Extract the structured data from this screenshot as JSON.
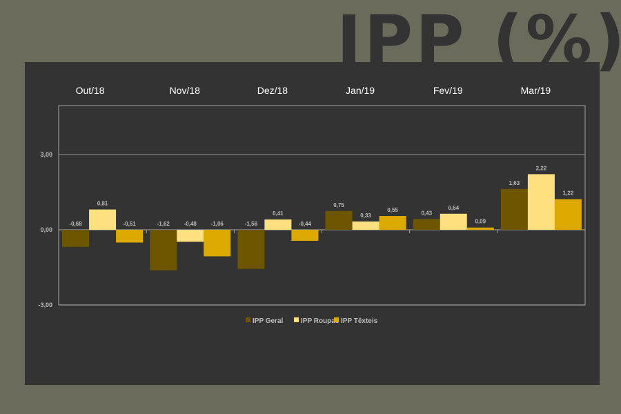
{
  "title": "IPP (%)",
  "colors": {
    "geral": "#6e5600",
    "roupas": "#ffe080",
    "texteis": "#dba900",
    "panel": "#333333",
    "background": "#6b6b5c"
  },
  "chart_data": {
    "type": "bar",
    "categories": [
      "Out/18",
      "Nov/18",
      "Dez/18",
      "Jan/19",
      "Fev/19",
      "Mar/19"
    ],
    "series": [
      {
        "name": "IPP Geral",
        "values": [
          -0.68,
          -1.62,
          -1.56,
          0.75,
          0.43,
          1.63
        ]
      },
      {
        "name": "IPP Roupas",
        "values": [
          0.81,
          -0.48,
          0.41,
          0.33,
          0.64,
          2.22
        ]
      },
      {
        "name": "IPP Têxteis",
        "values": [
          -0.51,
          -1.06,
          -0.44,
          0.55,
          0.09,
          1.22
        ]
      }
    ],
    "data_labels": [
      [
        "-0,68",
        "-1,62",
        "-1,56",
        "0,75",
        "0,43",
        "1,63"
      ],
      [
        "0,81",
        "-0,48",
        "0,41",
        "0,33",
        "0,64",
        "2,22"
      ],
      [
        "-0,51",
        "-1,06",
        "-0,44",
        "0,55",
        "0,09",
        "1,22"
      ]
    ],
    "yticks": [
      3,
      0,
      -3
    ],
    "ytick_labels": [
      "3,00",
      "0,00",
      "-3,00"
    ],
    "ylim": [
      -3,
      5
    ],
    "grid": true,
    "legend": "bottom-center"
  }
}
